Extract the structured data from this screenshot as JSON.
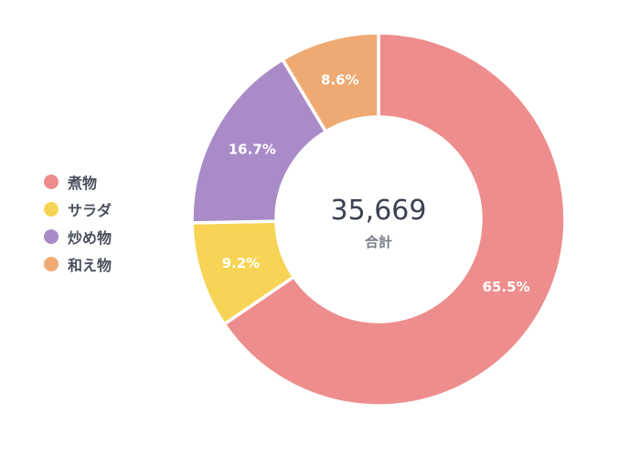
{
  "chart_data": {
    "type": "pie",
    "categories": [
      "煮物",
      "サラダ",
      "炒め物",
      "和え物"
    ],
    "values": [
      65.5,
      9.2,
      16.7,
      8.6
    ],
    "value_labels": [
      "65.5%",
      "9.2%",
      "16.7%",
      "8.6%"
    ],
    "colors": [
      "#ee8d8d",
      "#f7d455",
      "#a98bc8",
      "#efaa73"
    ],
    "total": {
      "value": "35,669",
      "label": "合計"
    },
    "legend_placement": "left"
  }
}
